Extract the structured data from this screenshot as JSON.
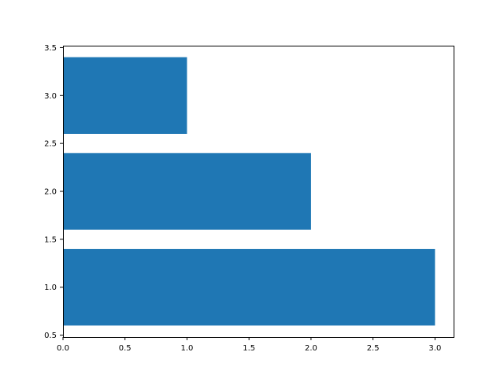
{
  "chart_data": {
    "type": "bar",
    "orientation": "horizontal",
    "y": [
      1.0,
      2.0,
      3.0
    ],
    "values": [
      3.0,
      2.0,
      1.0
    ],
    "bar_color": "#1f77b4",
    "xlim": [
      0.0,
      3.15
    ],
    "ylim": [
      0.48,
      3.52
    ],
    "x_ticks": [
      "0.0",
      "0.5",
      "1.0",
      "1.5",
      "2.0",
      "2.5",
      "3.0"
    ],
    "y_ticks": [
      "0.5",
      "1.0",
      "1.5",
      "2.0",
      "2.5",
      "3.0",
      "3.5"
    ],
    "grid": false,
    "title": "",
    "xlabel": "",
    "ylabel": ""
  }
}
